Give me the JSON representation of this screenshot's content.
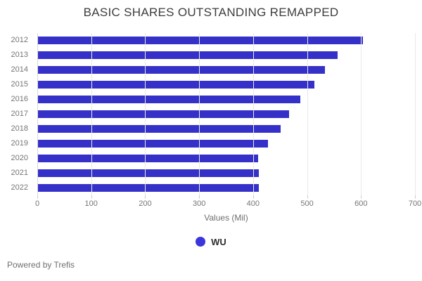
{
  "title": "BASIC SHARES OUTSTANDING REMAPPED",
  "chart_data": {
    "type": "bar",
    "orientation": "horizontal",
    "title": "BASIC SHARES OUTSTANDING REMAPPED",
    "categories": [
      "2012",
      "2013",
      "2014",
      "2015",
      "2016",
      "2017",
      "2018",
      "2019",
      "2020",
      "2021",
      "2022"
    ],
    "series": [
      {
        "name": "WU",
        "values": [
          604,
          557,
          533,
          514,
          487,
          467,
          451,
          428,
          409,
          410,
          410
        ]
      }
    ],
    "xlabel": "Values (Mil)",
    "ylabel": "",
    "xlim": [
      0,
      700
    ],
    "xticks": [
      0,
      100,
      200,
      300,
      400,
      500,
      600,
      700
    ],
    "grid": "vertical",
    "legend_position": "bottom",
    "colors": {
      "bar": "#3531c8",
      "legend_dot": "#3c35dc",
      "gridline": "#e9e9e9",
      "axis_line": "#d8d8de",
      "title_text": "#3d3d3d",
      "tick_text": "#757575"
    }
  },
  "legend": {
    "label": "WU"
  },
  "footer": {
    "text": "Powered by Trefis"
  }
}
